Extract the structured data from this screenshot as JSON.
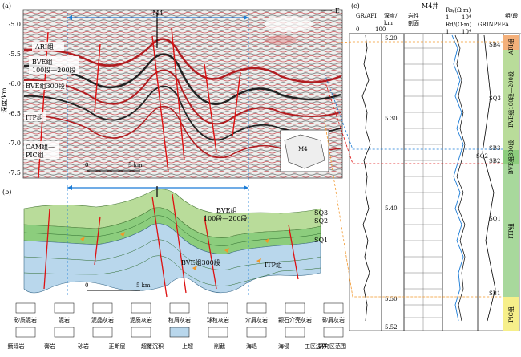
{
  "panel_a": {
    "label": "(a)",
    "well": "M4",
    "direction": "E",
    "y_axis_label": "深度/km",
    "y_ticks": [
      "-5.0",
      "-5.5",
      "-6.0",
      "-6.5",
      "-7.0",
      "-7.5"
    ],
    "labels": {
      "ari": "ARI组",
      "bve": "BVE组",
      "bve_range": "100段—200段",
      "bve300": "BVE组300段",
      "itp": "ITP组",
      "cam": "CAM组—",
      "pic": "PIC组",
      "m4_inset": "M4"
    },
    "scale_zero": "0",
    "scale_len": "5 km"
  },
  "panel_b": {
    "label": "(b)",
    "well": "M4",
    "sq3": "SQ3",
    "sq2": "SQ2",
    "sq1": "SQ1",
    "bve": "BVE组",
    "bve_range": "100段—200段",
    "bve300": "BVE组300段",
    "itp": "ITP组",
    "scale_zero": "0",
    "scale_len": "5 km"
  },
  "panel_c": {
    "label": "(c)",
    "title": "M4井",
    "gr_label": "GR/API",
    "gr_ticks": [
      "0",
      "100"
    ],
    "depth_label": "深度/",
    "depth_unit": "km",
    "litho_label": "岩性",
    "litho_sub": "剖面",
    "rs_label": "Rs/(Ω·m)",
    "rd_label": "Rd/(Ω·m)",
    "res_ticks": [
      "1",
      "10⁴"
    ],
    "grinpefa_label": "GRINPEFA",
    "zone_label": "组/段",
    "depths": [
      "5.20",
      "5.30",
      "5.40",
      "5.50",
      "5.52"
    ],
    "sq_markers": [
      "SB4",
      "SQ3",
      "SB3",
      "SQ2",
      "SB2",
      "SQ1",
      "SB1"
    ],
    "formations": [
      {
        "name": "ARI组",
        "color": "#f4b07a"
      },
      {
        "name": "BVE组100段—200段",
        "color": "#b9dc9a"
      },
      {
        "name": "BVE组300段",
        "color": "#8ccd7d"
      },
      {
        "name": "ITP组",
        "color": "#a8d89c"
      },
      {
        "name": "PIC组",
        "color": "#f6ef8a"
      }
    ]
  },
  "legend": {
    "items": [
      "砂质泥岩",
      "泥岩",
      "泥晶灰岩",
      "泥质灰岩",
      "粒屑灰岩",
      "球粒灰岩",
      "介屑灰岩",
      "颗石介壳灰岩",
      "砂屑灰岩",
      "鲕绿岩",
      "膏岩",
      "砂岩",
      "正断层",
      "超覆沉积",
      "上超",
      "削截",
      "海退",
      "海侵",
      "工区边界",
      "研究区范围"
    ]
  }
}
